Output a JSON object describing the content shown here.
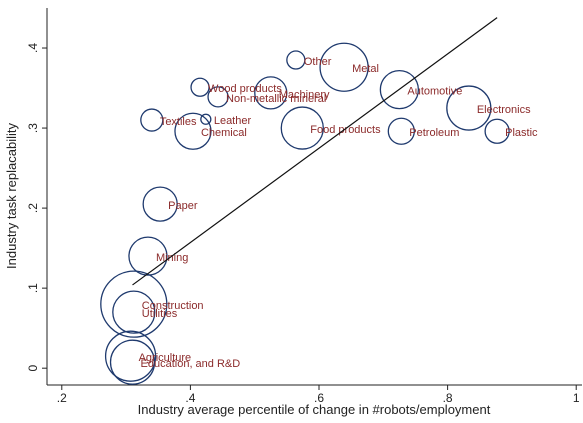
{
  "chart_data": {
    "type": "scatter",
    "xlabel": "Industry average percentile of change in #robots/employment",
    "ylabel": "Industry task replacability",
    "labels": [
      "Other",
      "Metal",
      "Wood products",
      "Machinery",
      "Non-metallic mineral",
      "Automotive",
      "Electronics",
      "Textiles",
      "Leather",
      "Chemical",
      "Food products",
      "Petroleum",
      "Plastic",
      "Paper",
      "Mining",
      "Construction",
      "Utilities",
      "Agriculture",
      "Education, and R&D"
    ],
    "x": [
      0.564,
      0.639,
      0.415,
      0.525,
      0.443,
      0.725,
      0.833,
      0.34,
      0.424,
      0.404,
      0.574,
      0.728,
      0.877,
      0.353,
      0.334,
      0.312,
      0.312,
      0.307,
      0.31
    ],
    "y": [
      0.385,
      0.376,
      0.351,
      0.344,
      0.339,
      0.348,
      0.325,
      0.31,
      0.311,
      0.296,
      0.3,
      0.296,
      0.296,
      0.205,
      0.14,
      0.08,
      0.07,
      0.015,
      0.0075
    ],
    "sizes": [
      8.1,
      57.6,
      8.1,
      25.6,
      10,
      36.1,
      48.4,
      12.1,
      2.5,
      32.4,
      44.1,
      16.9,
      14.4,
      28.9,
      36.1,
      108.9,
      44.1,
      62.5,
      48.4
    ],
    "marker_color": "#1f3a6e",
    "label_color": "#8b2a2a",
    "fit_line": {
      "x": [
        0.31,
        0.877
      ],
      "y": [
        0.104,
        0.438
      ],
      "color": "#111111"
    },
    "xlim": [
      0.177,
      1.009
    ],
    "ylim": [
      -0.021,
      0.45
    ],
    "xticks": [
      {
        "value": 0.2,
        "label": ".2"
      },
      {
        "value": 0.4,
        "label": ".4"
      },
      {
        "value": 0.6,
        "label": ".6"
      },
      {
        "value": 0.8,
        "label": ".8"
      },
      1
    ],
    "yticks": [
      0,
      {
        "value": 0.1,
        "label": ".1"
      },
      {
        "value": 0.2,
        "label": ".2"
      },
      {
        "value": 0.3,
        "label": ".3"
      },
      {
        "value": 0.4,
        "label": ".4"
      }
    ]
  }
}
